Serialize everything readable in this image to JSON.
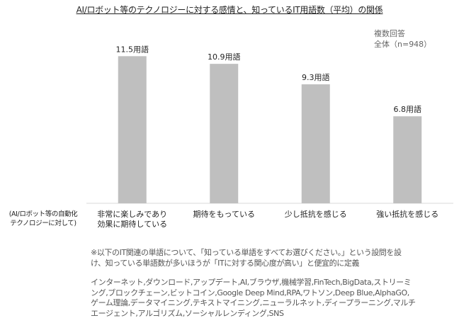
{
  "title": "AI/ロボット等のテクノロジーに対する感情と、知っているIT用語数（平均）の関係",
  "note": {
    "line1": "複数回答",
    "line2": "全体（n=948）"
  },
  "row_header": {
    "line1": "(AI/ロボット等の自動化",
    "line2": "テクノロジーに対して)"
  },
  "footnote": {
    "line1": "※以下のIT関連の単語について、「知っている単語をすべてお選びください。」という設問を設",
    "line2": "け、知っている単語数が多いほうが「ITに対する関心度が高い」と便宜的に定義",
    "terms1": "インターネット,ダウンロード,アップデート,AI,ブラウザ,機械学習,FinTech,BigData,ストリーミ",
    "terms2": "ング,ブロックチェーン,ビットコイン,Google Deep Mind,RPA,ワトソン,Deep Blue,AlphaGO,",
    "terms3": "ゲーム理論,データマイニング,テキストマイニング,ニューラルネット,ディープラーニング,マルチ",
    "terms4": "エージェント,アルゴリズム,ソーシャルレンディング,SNS"
  },
  "chart_data": {
    "type": "bar",
    "categories": [
      "非常に楽しみであり\n効果に期待している",
      "期待をもっている",
      "少し抵抗を感じる",
      "強い抵抗を感じる"
    ],
    "values": [
      11.5,
      10.9,
      9.3,
      6.8
    ],
    "data_labels": [
      "11.5用語",
      "10.9用語",
      "9.3用語",
      "6.8用語"
    ],
    "ylim": [
      0,
      13.4
    ],
    "grid": false,
    "bar_color": "#bfbfbf",
    "axis_color": "#d9d9d9"
  }
}
